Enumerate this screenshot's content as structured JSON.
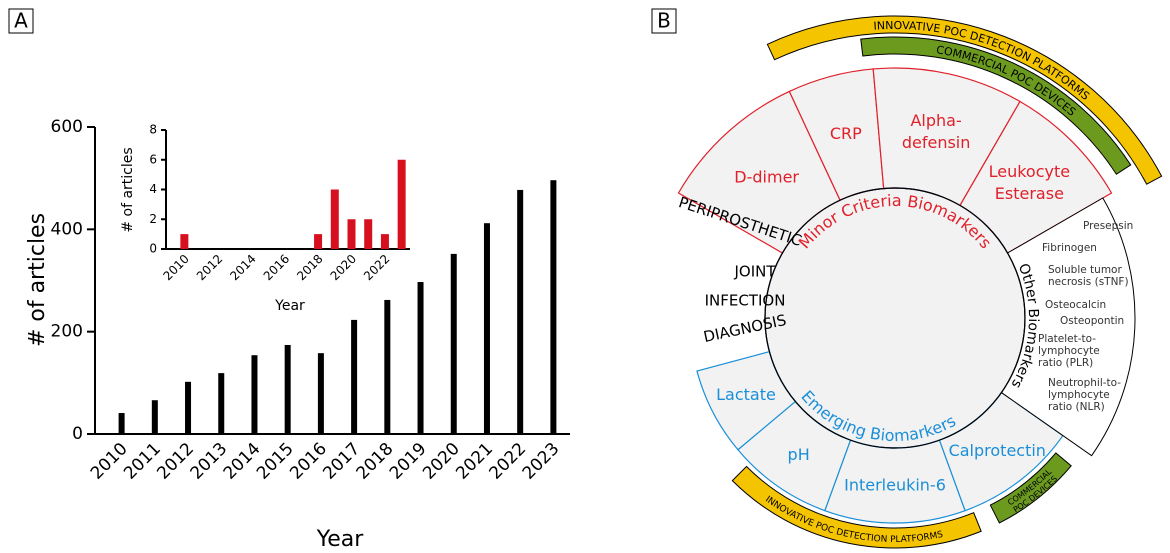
{
  "panels": {
    "a": "A",
    "b": "B"
  },
  "chart_data": [
    {
      "type": "bar",
      "x_label": "Year",
      "y_label": "# of articles",
      "categories": [
        "2010",
        "2011",
        "2012",
        "2013",
        "2014",
        "2015",
        "2016",
        "2017",
        "2018",
        "2019",
        "2020",
        "2021",
        "2022",
        "2023"
      ],
      "values": [
        41,
        66,
        102,
        119,
        154,
        174,
        158,
        223,
        262,
        297,
        352,
        412,
        477,
        496
      ],
      "color": "#000000",
      "ylim": [
        0,
        600
      ],
      "yticks": [
        0,
        200,
        400,
        600
      ]
    },
    {
      "type": "bar",
      "x_label": "Year",
      "y_label": "# of articles",
      "categories": [
        "2010",
        null,
        "2012",
        null,
        "2014",
        null,
        "2016",
        null,
        "2018",
        null,
        "2020",
        null,
        "2022",
        null
      ],
      "values": [
        1,
        0,
        0,
        0,
        0,
        0,
        0,
        0,
        1,
        4,
        2,
        2,
        1,
        6
      ],
      "color": "#d7101f",
      "ylim": [
        0,
        8
      ],
      "yticks": [
        0,
        2,
        4,
        6,
        8
      ]
    }
  ],
  "diagram": {
    "center_lines": [
      "PERIPROSTHETIC",
      "JOINT",
      "INFECTION",
      "DIAGNOSIS"
    ],
    "banners": {
      "top_outer": "INNOVATIVE POC DETECTION PLATFORMS",
      "top_inner": "COMMERCIAL POC DEVICES",
      "bottom_left": "INNOVATIVE POC DETECTION PLATFORMS",
      "bottom_right": [
        "COMMERCIAL",
        "POC DEVICES"
      ]
    },
    "minor": {
      "title": "Minor Criteria Biomarkers",
      "items": [
        [
          "D-dimer"
        ],
        [
          "CRP"
        ],
        [
          "Alpha-",
          "defensin"
        ],
        [
          "Leukocyte",
          "Esterase"
        ]
      ]
    },
    "emerging": {
      "title": "Emerging Biomarkers",
      "items": [
        [
          "Lactate"
        ],
        [
          "pH"
        ],
        [
          "Interleukin-6"
        ],
        [
          "Calprotectin"
        ]
      ]
    },
    "other": {
      "title": "Other Biomarkers",
      "items": [
        [
          "Presepsin"
        ],
        [
          "Fibrinogen"
        ],
        [
          "Soluble tumor",
          "necrosis (sTNF)"
        ],
        [
          "Osteocalcin"
        ],
        [
          "Osteopontin"
        ],
        [
          "Platelet-to-",
          "lymphocyte",
          "ratio (PLR)"
        ],
        [
          "Neutrophil-to-",
          "lymphocyte",
          "ratio (NLR)"
        ]
      ]
    }
  }
}
